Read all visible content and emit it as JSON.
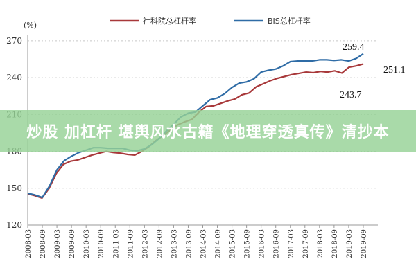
{
  "banner": {
    "text": "炒股 加杠杆 堪舆风水古籍《地理穿透真传》清抄本",
    "background": "#96d296"
  },
  "chart_data": {
    "type": "line",
    "unit_label": "(%)",
    "ylim": [
      120,
      275
    ],
    "yticks": [
      120,
      150,
      180,
      210,
      240,
      270
    ],
    "grid": "dotted",
    "legend_placement": "top",
    "x_tick_labels": [
      "2008-03",
      "2008-09",
      "2009-03",
      "2009-09",
      "2010-03",
      "2010-09",
      "2011-03",
      "2011-09",
      "2012-03",
      "2012-09",
      "2013-03",
      "2013-09",
      "2014-03",
      "2014-09",
      "2015-03",
      "2015-09",
      "2016-03",
      "2016-09",
      "2017-03",
      "2017-09",
      "2018-03",
      "2018-09",
      "2019-03",
      "2019-09"
    ],
    "series": [
      {
        "name": "社科院总杠杆率",
        "color": "#a8383a",
        "values": [
          145.5,
          144.0,
          142.0,
          150.0,
          162.0,
          169.5,
          172.0,
          173.0,
          175.0,
          177.0,
          178.5,
          180.0,
          179.0,
          178.5,
          177.5,
          177.0,
          180.0,
          184.0,
          189.0,
          193.0,
          197.5,
          201.5,
          204.0,
          206.0,
          212.0,
          216.5,
          217.0,
          219.0,
          221.0,
          222.5,
          226.0,
          227.5,
          232.5,
          235.0,
          237.5,
          239.5,
          241.0,
          242.5,
          243.5,
          244.5,
          244.0,
          245.0,
          244.5,
          245.5,
          243.7,
          248.5,
          249.5,
          251.1
        ]
      },
      {
        "name": "BIS总杠杆率",
        "color": "#2f6ca6",
        "values": [
          146.0,
          144.5,
          142.5,
          152.0,
          165.0,
          172.5,
          176.0,
          179.0,
          181.0,
          183.0,
          183.0,
          182.5,
          182.5,
          182.5,
          181.0,
          180.5,
          182.0,
          185.5,
          190.5,
          196.5,
          202.0,
          208.0,
          211.0,
          212.0,
          217.0,
          222.0,
          223.5,
          227.0,
          232.0,
          235.5,
          236.5,
          239.0,
          244.5,
          246.0,
          247.0,
          249.5,
          253.0,
          253.5,
          253.5,
          253.5,
          254.5,
          254.5,
          254.0,
          254.5,
          253.5,
          255.5,
          259.4
        ]
      }
    ],
    "annotations": [
      {
        "text": "259.4"
      },
      {
        "text": "251.1"
      },
      {
        "text": "243.7"
      }
    ]
  }
}
